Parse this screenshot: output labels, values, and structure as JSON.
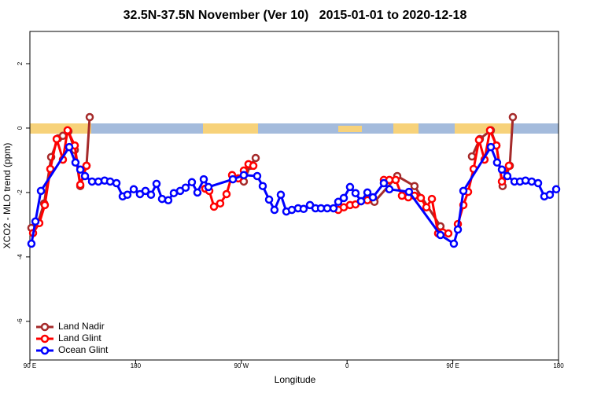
{
  "chart_data": {
    "type": "line",
    "title": "32.5N-37.5N November (Ver 10)   2015-01-01 to 2020-12-18",
    "xlabel": "Longitude",
    "ylabel": "XCO2 - MLO trend (ppm)",
    "xlim": [
      90,
      540
    ],
    "ylim": [
      -7.2,
      3.0
    ],
    "xticks": [
      {
        "value": 90,
        "label": "90 E"
      },
      {
        "value": 180,
        "label": "180"
      },
      {
        "value": 270,
        "label": "90 W"
      },
      {
        "value": 360,
        "label": "0"
      },
      {
        "value": 450,
        "label": "90 E"
      },
      {
        "value": 540,
        "label": "180"
      }
    ],
    "yticks": [
      2,
      0,
      -2,
      -4,
      -6
    ],
    "legend": "bottom-left",
    "series": [
      {
        "name": "Land Nadir",
        "color": "#a52a2a",
        "x": [
          91.3,
          96.7,
          102.1,
          108.1,
          114.1,
          118.1,
          122.8,
          128.2,
          132.9,
          138.2,
          140.9,
          null,
          272.1,
          277.5,
          282.2,
          null,
          383.3,
          402.7,
          417.4,
          439.5,
          null,
          466.3,
          473.0,
          482.4,
          487.1,
          492.4,
          498.5,
          501.1
        ],
        "values": [
          -3.1,
          -2.95,
          -2.34,
          -0.9,
          -0.32,
          -0.24,
          -0.1,
          -0.68,
          -1.8,
          -1.17,
          0.34,
          null,
          -1.66,
          -1.17,
          -0.93,
          null,
          -2.29,
          -1.49,
          -1.8,
          -3.05,
          null,
          -0.88,
          -0.34,
          -0.07,
          -0.54,
          -1.8,
          -1.17,
          0.34
        ]
      },
      {
        "name": "Land Glint",
        "color": "#ff0000",
        "x": [
          92.7,
          98.0,
          102.7,
          107.4,
          112.8,
          118.1,
          122.1,
          128.2,
          132.9,
          138.2,
          null,
          239.3,
          242.7,
          246.7,
          252.0,
          257.4,
          262.1,
          267.4,
          272.1,
          276.1,
          280.2,
          null,
          352.5,
          357.2,
          362.5,
          367.2,
          371.9,
          377.3,
          null,
          391.3,
          396.0,
          401.4,
          406.7,
          412.1,
          417.4,
          422.8,
          427.5,
          432.2,
          437.5,
          441.5,
          446.2,
          null,
          454.3,
          459.0,
          463.0,
          467.7,
          472.3,
          477.0,
          481.7,
          487.1,
          491.8,
          497.8
        ],
        "values": [
          -3.26,
          -2.95,
          -2.39,
          -1.27,
          -0.34,
          -0.98,
          -0.07,
          -0.54,
          -1.76,
          -1.17,
          null,
          -1.88,
          -1.95,
          -2.44,
          -2.34,
          -2.05,
          -1.46,
          -1.56,
          -1.32,
          -1.12,
          -1.17,
          null,
          -2.54,
          -2.46,
          -2.39,
          -2.37,
          -2.27,
          -2.24,
          null,
          -1.61,
          -1.61,
          -1.61,
          -2.1,
          -2.15,
          -2.1,
          -2.17,
          -2.46,
          -2.2,
          -3.27,
          -3.24,
          -3.27,
          null,
          -2.98,
          -2.39,
          -1.98,
          -1.27,
          -0.37,
          -0.98,
          -0.07,
          -0.54,
          -1.66,
          -1.17
        ]
      },
      {
        "name": "Ocean Glint",
        "color": "#0000ff",
        "x": [
          91.3,
          94.7,
          99.4,
          123.5,
          128.8,
          132.9,
          136.9,
          142.9,
          148.3,
          153.6,
          158.3,
          163.7,
          169.0,
          173.0,
          178.4,
          183.7,
          188.4,
          193.1,
          197.8,
          202.5,
          207.8,
          212.5,
          217.9,
          222.6,
          227.9,
          232.6,
          238.0,
          242.0,
          262.8,
          272.1,
          283.5,
          288.2,
          293.6,
          298.2,
          303.6,
          308.3,
          313.0,
          318.3,
          323.0,
          328.4,
          333.1,
          337.8,
          343.1,
          348.5,
          352.5,
          357.2,
          362.5,
          367.2,
          371.9,
          377.3,
          382.0,
          391.3,
          396.0,
          412.7,
          439.5,
          450.9,
          454.3,
          459.0,
          482.4,
          487.7,
          491.8,
          496.4,
          502.5,
          507.2,
          511.9,
          517.2,
          522.6,
          527.9,
          532.6,
          538.0
        ],
        "values": [
          -3.59,
          -2.9,
          -1.95,
          -0.59,
          -1.07,
          -1.29,
          -1.49,
          -1.66,
          -1.66,
          -1.63,
          -1.66,
          -1.71,
          -2.12,
          -2.07,
          -1.9,
          -2.05,
          -1.95,
          -2.07,
          -1.73,
          -2.2,
          -2.24,
          -2.02,
          -1.95,
          -1.85,
          -1.68,
          -2.0,
          -1.59,
          -1.83,
          -1.59,
          -1.46,
          -1.49,
          -1.8,
          -2.22,
          -2.54,
          -2.07,
          -2.59,
          -2.54,
          -2.49,
          -2.51,
          -2.39,
          -2.49,
          -2.49,
          -2.49,
          -2.49,
          -2.29,
          -2.17,
          -1.83,
          -2.02,
          -2.27,
          -2.0,
          -2.15,
          -1.71,
          -1.9,
          -1.98,
          -3.32,
          -3.59,
          -3.15,
          -1.95,
          -0.59,
          -1.07,
          -1.29,
          -1.49,
          -1.66,
          -1.66,
          -1.63,
          -1.66,
          -1.71,
          -2.12,
          -2.07,
          -1.9
        ]
      }
    ]
  }
}
